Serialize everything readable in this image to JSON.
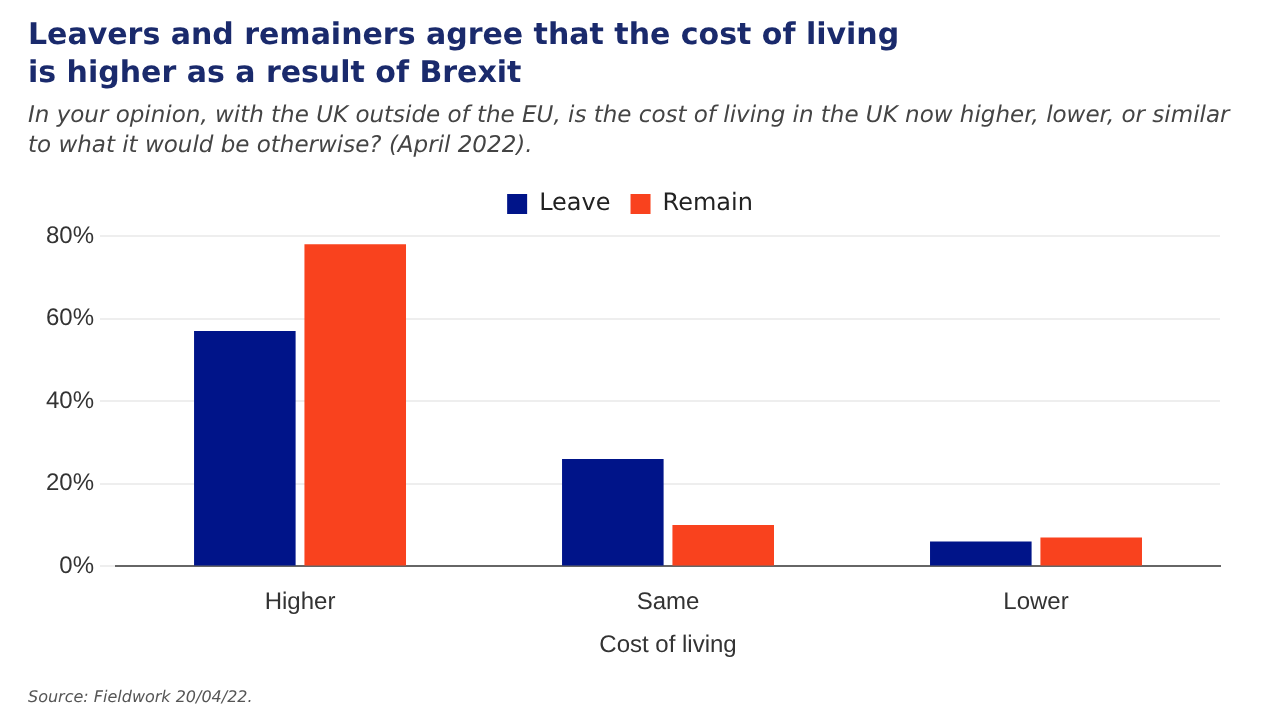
{
  "chart_data": {
    "type": "bar",
    "title": "Leavers and remainers agree that the cost of living is higher as a result of Brexit",
    "subtitle": "In your opinion, with the UK outside of the EU, is the cost of living in the UK now higher, lower, or similar to what it would be otherwise? (April 2022).",
    "xlabel": "Cost of living",
    "categories": [
      "Higher",
      "Same",
      "Lower"
    ],
    "series": [
      {
        "name": "Leave",
        "color": "#001489",
        "values": [
          57,
          26,
          6
        ]
      },
      {
        "name": "Remain",
        "color": "#f9421e",
        "values": [
          78,
          10,
          7
        ]
      }
    ],
    "ylim": [
      0,
      80
    ],
    "yticks": [
      {
        "value": 0,
        "label": "0%"
      },
      {
        "value": 20,
        "label": "20%"
      },
      {
        "value": 40,
        "label": "40%"
      },
      {
        "value": 60,
        "label": "60%"
      },
      {
        "value": 80,
        "label": "80%"
      }
    ],
    "grid": "y",
    "legend": "top",
    "annotations": [
      "Source: Fieldwork 20/04/22."
    ]
  }
}
